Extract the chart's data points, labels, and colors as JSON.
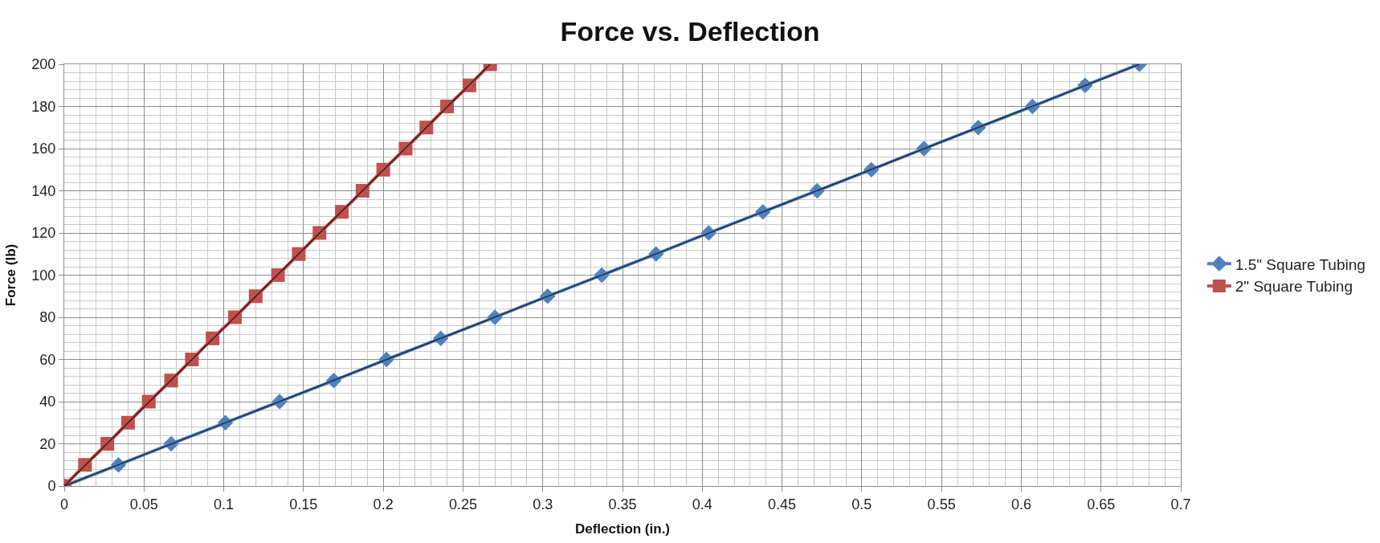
{
  "chart_data": {
    "type": "line",
    "title": "Force vs. Deflection",
    "xlabel": "Deflection (in.)",
    "ylabel": "Force (lb)",
    "series": [
      {
        "name": "1.5\" Square Tubing",
        "color": "#4f81bd",
        "marker": "diamond",
        "x": [
          0,
          0.034,
          0.067,
          0.101,
          0.135,
          0.169,
          0.202,
          0.236,
          0.27,
          0.303,
          0.337,
          0.371,
          0.404,
          0.438,
          0.472,
          0.506,
          0.539,
          0.573,
          0.607,
          0.64,
          0.674
        ],
        "values": [
          0,
          10,
          20,
          30,
          40,
          50,
          60,
          70,
          80,
          90,
          100,
          110,
          120,
          130,
          140,
          150,
          160,
          170,
          180,
          190,
          200
        ]
      },
      {
        "name": "2\" Square Tubing",
        "color": "#c0504d",
        "marker": "square",
        "x": [
          0,
          0.013,
          0.027,
          0.04,
          0.053,
          0.067,
          0.08,
          0.093,
          0.107,
          0.12,
          0.134,
          0.147,
          0.16,
          0.174,
          0.187,
          0.2,
          0.214,
          0.227,
          0.24,
          0.254,
          0.267
        ],
        "values": [
          0,
          10,
          20,
          30,
          40,
          50,
          60,
          70,
          80,
          90,
          100,
          110,
          120,
          130,
          140,
          150,
          160,
          170,
          180,
          190,
          200
        ]
      },
      {
        "color": "#1f2d4a",
        "marker": "none",
        "x": [
          0,
          0.674
        ],
        "values": [
          0,
          200
        ]
      },
      {
        "color": "#3a1a1a",
        "marker": "none",
        "x": [
          0,
          0.267
        ],
        "values": [
          0,
          200
        ]
      }
    ],
    "xlim": [
      0,
      0.7
    ],
    "xticks": [
      0,
      0.05,
      0.1,
      0.15,
      0.2,
      0.25,
      0.3,
      0.35,
      0.4,
      0.45,
      0.5,
      0.55,
      0.6,
      0.65,
      0.7
    ],
    "ylim": [
      0,
      200
    ],
    "yticks": [
      0,
      20,
      40,
      60,
      80,
      100,
      120,
      140,
      160,
      180,
      200
    ],
    "grid": true,
    "legend": "right"
  }
}
